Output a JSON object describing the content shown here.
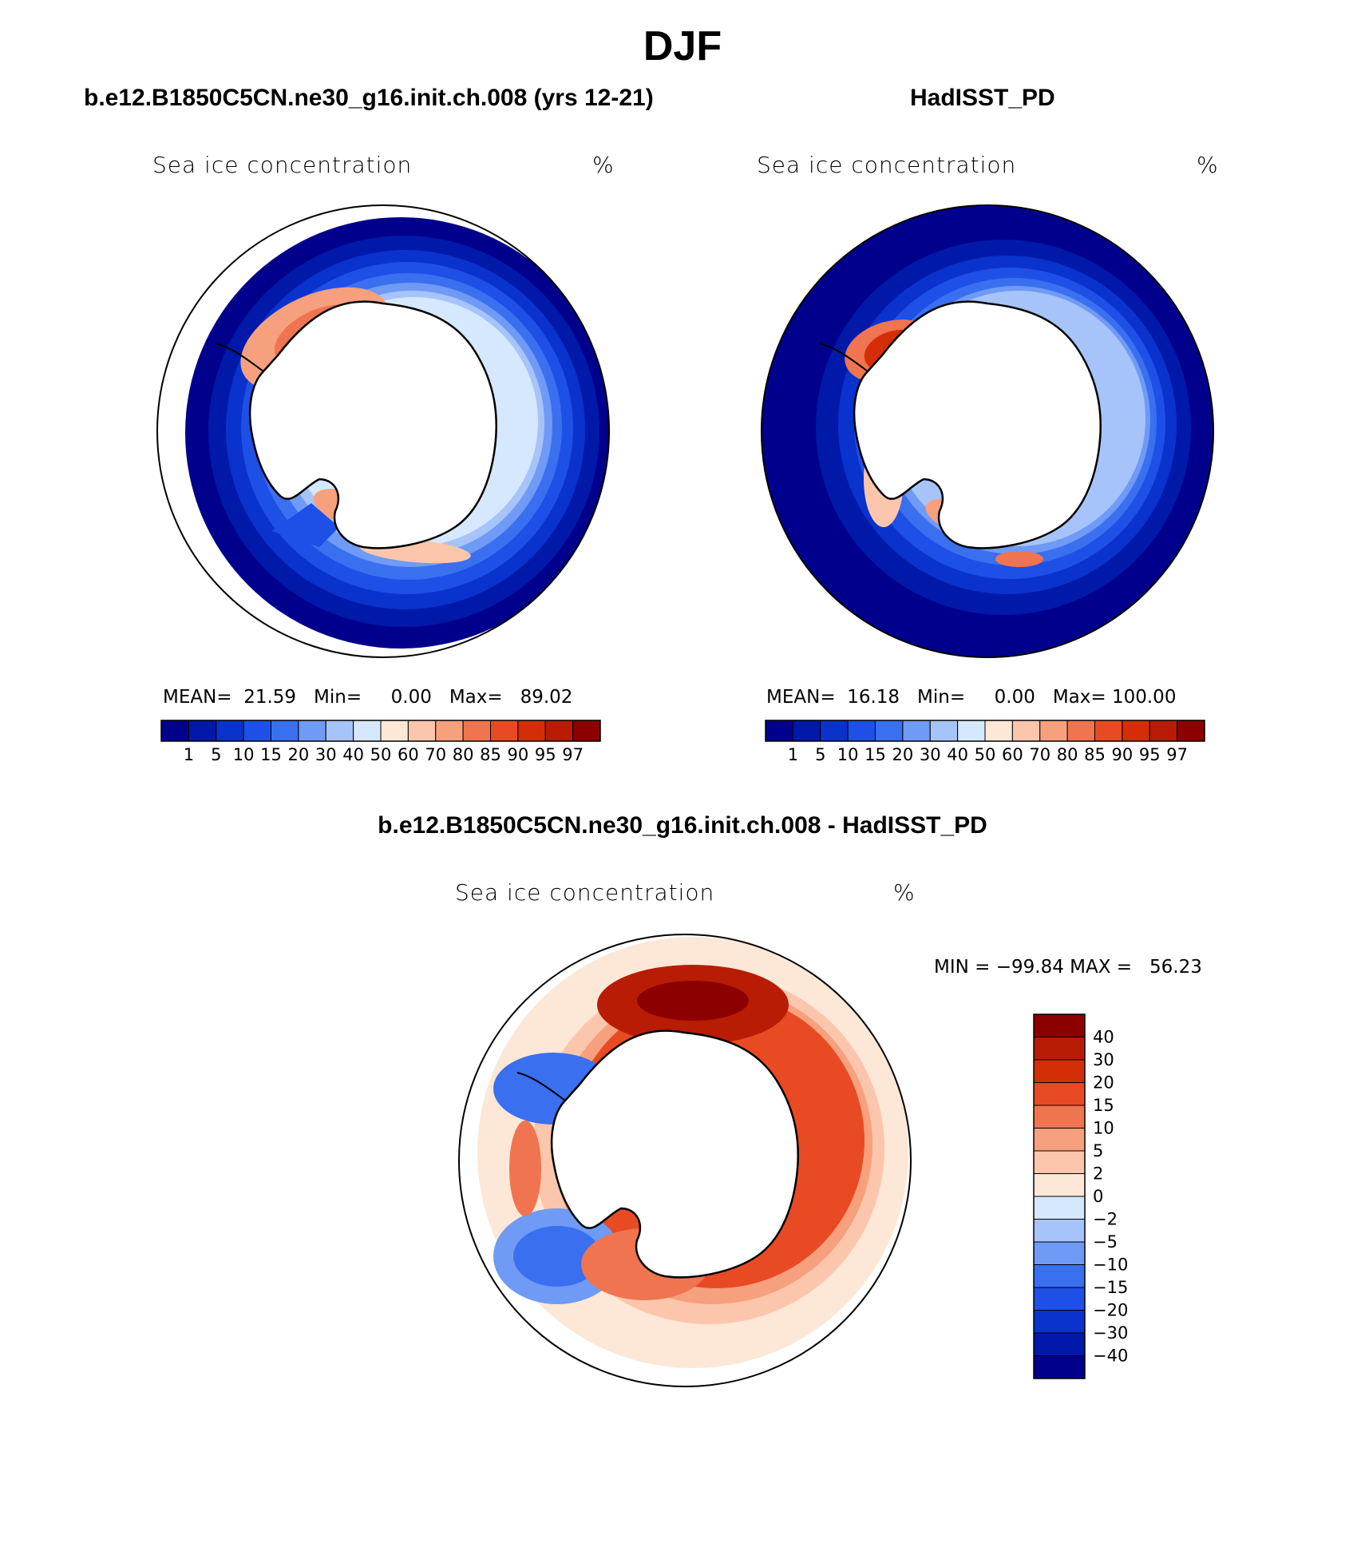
{
  "title": "DJF",
  "panels": [
    {
      "case_title": "b.e12.B1850C5CN.ne30_g16.init.ch.008 (yrs 12-21)",
      "variable": "Sea ice concentration",
      "units": "%",
      "stats": {
        "mean_label": "MEAN=",
        "mean": "21.59",
        "min_label": "Min=",
        "min": "0.00",
        "max_label": "Max=",
        "max": "89.02"
      }
    },
    {
      "case_title": "HadISST_PD",
      "variable": "Sea ice concentration",
      "units": "%",
      "stats": {
        "mean_label": "MEAN=",
        "mean": "16.18",
        "min_label": "Min=",
        "min": "0.00",
        "max_label": "Max=",
        "max": "100.00"
      }
    }
  ],
  "diff_panel": {
    "case_title": "b.e12.B1850C5CN.ne30_g16.init.ch.008 - HadISST_PD",
    "variable": "Sea ice concentration",
    "units": "%",
    "minmax": "MIN = −99.84 MAX =   56.23"
  },
  "colorbar_levels": [
    "1",
    "5",
    "10",
    "15",
    "20",
    "30",
    "40",
    "50",
    "60",
    "70",
    "80",
    "85",
    "90",
    "95",
    "97"
  ],
  "colorbar_colors": [
    "#00008c",
    "#0019a8",
    "#0a32cc",
    "#1e4fe6",
    "#3a6ff0",
    "#6f9af5",
    "#a6c4fa",
    "#d6e8fd",
    "#fde7d6",
    "#fcc6ad",
    "#f7a07d",
    "#f07450",
    "#e84a24",
    "#d42e08",
    "#b81c04",
    "#8c0000"
  ],
  "diff_levels": [
    "40",
    "30",
    "20",
    "15",
    "10",
    "5",
    "2",
    "0",
    "−2",
    "−5",
    "−10",
    "−15",
    "−20",
    "−30",
    "−40"
  ],
  "diff_colors": [
    "#8c0000",
    "#b81c04",
    "#d42e08",
    "#e84a24",
    "#f07450",
    "#f7a07d",
    "#fcc6ad",
    "#fde7d6",
    "#d6e8fd",
    "#a6c4fa",
    "#6f9af5",
    "#3a6ff0",
    "#1e4fe6",
    "#0a32cc",
    "#0019a8",
    "#00008c"
  ]
}
